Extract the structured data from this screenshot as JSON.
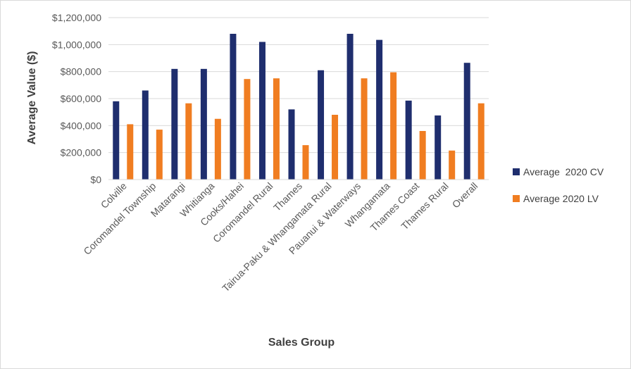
{
  "chart_data": {
    "type": "bar",
    "xlabel": "Sales Group",
    "ylabel": "Average Value ($)",
    "ylim": [
      0,
      1200000
    ],
    "y_ticks": [
      "$0",
      "$200,000",
      "$400,000",
      "$600,000",
      "$800,000",
      "$1,000,000",
      "$1,200,000"
    ],
    "categories": [
      "Colville",
      "Coromandel Township",
      "Matarangi",
      "Whitianga",
      "Cooks/Hahei",
      "Coromandel Rural",
      "Thames",
      "Tairua-Paku & Whangamata Rural",
      "Pauanui & Waterways",
      "Whangamata",
      "Thames Coast",
      "Thames Rural",
      "Overall"
    ],
    "series": [
      {
        "name": "Average  2020 CV",
        "color": "#1f2e6e",
        "values": [
          580000,
          660000,
          820000,
          820000,
          1080000,
          1020000,
          520000,
          810000,
          1080000,
          1035000,
          585000,
          475000,
          865000
        ]
      },
      {
        "name": "Average 2020 LV",
        "color": "#f07d21",
        "values": [
          410000,
          370000,
          565000,
          450000,
          745000,
          750000,
          255000,
          480000,
          750000,
          795000,
          360000,
          215000,
          565000
        ]
      }
    ],
    "grid": true,
    "legend": "right"
  }
}
